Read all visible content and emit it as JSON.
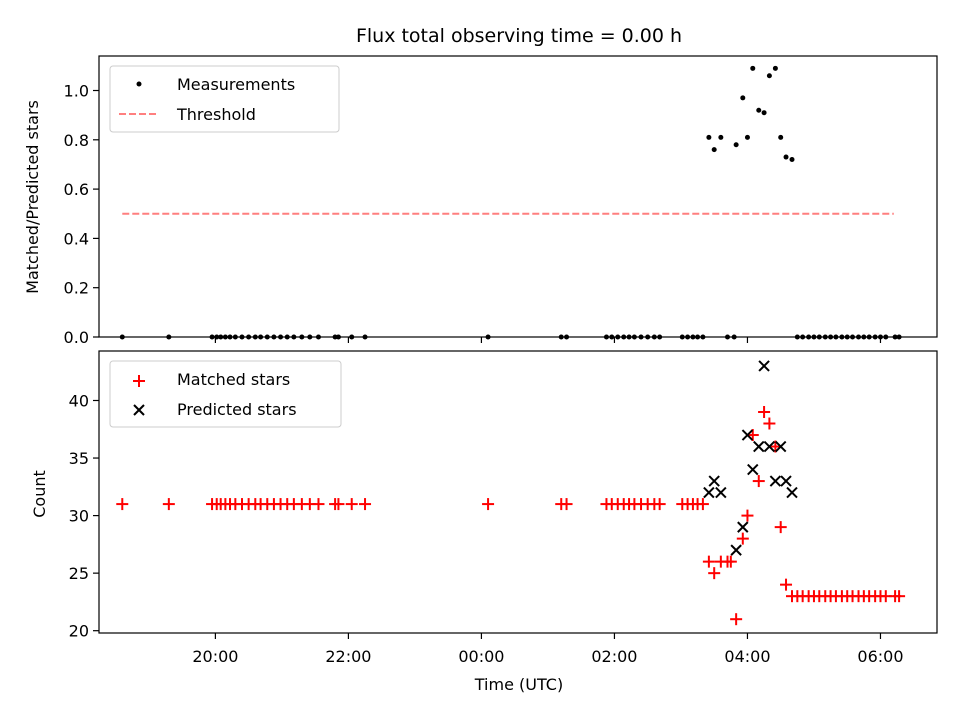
{
  "chart_data": [
    {
      "type": "scatter",
      "title": "Flux total observing time = 0.00 h",
      "xlabel": "",
      "ylabel": "Matched/Predicted stars",
      "ylim": [
        0.0,
        1.14
      ],
      "yticks": [
        "0.0",
        "0.2",
        "0.4",
        "0.6",
        "0.8",
        "1.0"
      ],
      "x_unit": "hours since 00:00 UTC",
      "xlim": [
        -5.75,
        6.85
      ],
      "legend_position": "upper-left",
      "grid": false,
      "series": [
        {
          "name": "Measurements",
          "marker": "dot",
          "color": "#000000",
          "x": [
            -5.4,
            -4.7,
            -4.05,
            -3.98,
            -3.92,
            -3.85,
            -3.78,
            -3.7,
            -3.6,
            -3.5,
            -3.4,
            -3.32,
            -3.22,
            -3.12,
            -3.02,
            -2.92,
            -2.82,
            -2.7,
            -2.58,
            -2.45,
            -2.2,
            -2.15,
            -1.95,
            -1.75,
            0.1,
            1.2,
            1.28,
            1.88,
            1.96,
            2.05,
            2.14,
            2.22,
            2.3,
            2.4,
            2.5,
            2.6,
            2.68,
            3.02,
            3.1,
            3.18,
            3.25,
            3.33,
            3.7,
            3.8,
            3.42,
            3.5,
            3.6,
            3.83,
            3.93,
            4.0,
            4.08,
            4.17,
            4.25,
            4.33,
            4.42,
            4.5,
            4.58,
            4.67,
            4.75,
            4.83,
            4.92,
            5.0,
            5.08,
            5.17,
            5.25,
            5.33,
            5.42,
            5.5,
            5.58,
            5.67,
            5.75,
            5.83,
            5.92,
            6.0,
            6.08,
            6.22,
            6.28
          ],
          "y": [
            0,
            0,
            0,
            0,
            0,
            0,
            0,
            0,
            0,
            0,
            0,
            0,
            0,
            0,
            0,
            0,
            0,
            0,
            0,
            0,
            0,
            0,
            0,
            0,
            0,
            0,
            0,
            0,
            0,
            0,
            0,
            0,
            0,
            0,
            0,
            0,
            0,
            0,
            0,
            0,
            0,
            0,
            0,
            0,
            0.81,
            0.76,
            0.81,
            0.78,
            0.97,
            0.81,
            1.09,
            0.92,
            0.91,
            1.06,
            1.09,
            0.81,
            0.73,
            0.72,
            0,
            0,
            0,
            0,
            0,
            0,
            0,
            0,
            0,
            0,
            0,
            0,
            0,
            0,
            0,
            0,
            0,
            0,
            0
          ]
        },
        {
          "name": "Threshold",
          "line": "dashed",
          "color": "#ff7f7f",
          "x": [
            -5.4,
            6.2
          ],
          "y": [
            0.5,
            0.5
          ]
        }
      ]
    },
    {
      "type": "scatter",
      "title": "",
      "xlabel": "Time (UTC)",
      "ylabel": "Count",
      "ylim": [
        19.8,
        44.3
      ],
      "yticks": [
        "20",
        "25",
        "30",
        "35",
        "40"
      ],
      "x_unit": "hours since 00:00 UTC",
      "xlim": [
        -5.75,
        6.85
      ],
      "xticks": [
        {
          "x": -4,
          "label": "20:00"
        },
        {
          "x": -2,
          "label": "22:00"
        },
        {
          "x": 0,
          "label": "00:00"
        },
        {
          "x": 2,
          "label": "02:00"
        },
        {
          "x": 4,
          "label": "04:00"
        },
        {
          "x": 6,
          "label": "06:00"
        }
      ],
      "legend_position": "upper-left",
      "grid": false,
      "series": [
        {
          "name": "Matched stars",
          "marker": "plus",
          "color": "#ff0000",
          "x": [
            -5.4,
            -4.7,
            -4.05,
            -3.98,
            -3.92,
            -3.85,
            -3.78,
            -3.7,
            -3.6,
            -3.5,
            -3.4,
            -3.32,
            -3.22,
            -3.12,
            -3.02,
            -2.92,
            -2.82,
            -2.7,
            -2.58,
            -2.45,
            -2.2,
            -2.15,
            -1.95,
            -1.75,
            0.1,
            1.2,
            1.28,
            1.88,
            1.96,
            2.05,
            2.14,
            2.22,
            2.3,
            2.4,
            2.5,
            2.6,
            2.68,
            3.02,
            3.1,
            3.18,
            3.25,
            3.33,
            3.42,
            3.5,
            3.6,
            3.7,
            3.75,
            3.83,
            3.93,
            4.0,
            4.08,
            4.17,
            4.25,
            4.33,
            4.42,
            4.5,
            4.58,
            4.67,
            4.75,
            4.83,
            4.92,
            5.0,
            5.08,
            5.17,
            5.25,
            5.33,
            5.42,
            5.5,
            5.58,
            5.67,
            5.75,
            5.83,
            5.92,
            6.0,
            6.08,
            6.22,
            6.28
          ],
          "y": [
            31,
            31,
            31,
            31,
            31,
            31,
            31,
            31,
            31,
            31,
            31,
            31,
            31,
            31,
            31,
            31,
            31,
            31,
            31,
            31,
            31,
            31,
            31,
            31,
            31,
            31,
            31,
            31,
            31,
            31,
            31,
            31,
            31,
            31,
            31,
            31,
            31,
            31,
            31,
            31,
            31,
            31,
            26,
            25,
            26,
            26,
            26,
            21,
            28,
            30,
            37,
            33,
            39,
            38,
            36,
            29,
            24,
            23,
            23,
            23,
            23,
            23,
            23,
            23,
            23,
            23,
            23,
            23,
            23,
            23,
            23,
            23,
            23,
            23,
            23,
            23,
            23
          ]
        },
        {
          "name": "Predicted stars",
          "marker": "x",
          "color": "#000000",
          "x": [
            3.42,
            3.5,
            3.6,
            3.83,
            3.93,
            4.0,
            4.08,
            4.17,
            4.25,
            4.33,
            4.42,
            4.5,
            4.58,
            4.67
          ],
          "y": [
            32,
            33,
            32,
            27,
            29,
            37,
            34,
            36,
            43,
            36,
            33,
            36,
            33,
            32
          ]
        }
      ]
    }
  ]
}
